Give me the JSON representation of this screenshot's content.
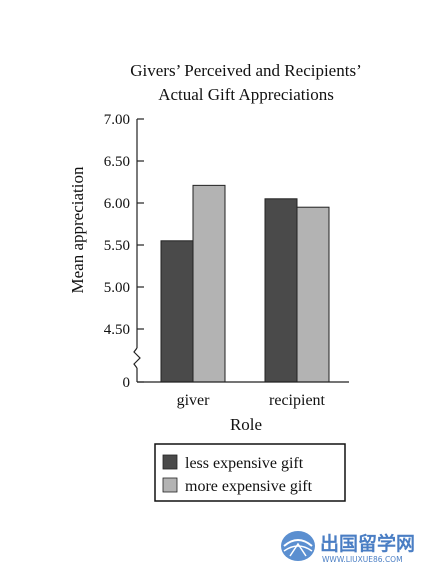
{
  "chart_data": {
    "type": "bar",
    "title": [
      "Givers’ Perceived and Recipients’",
      "Actual Gift Appreciations"
    ],
    "xlabel": "Role",
    "ylabel": "Mean appreciation",
    "categories": [
      "giver",
      "recipient"
    ],
    "series": [
      {
        "name": "less expensive gift",
        "values": [
          5.55,
          6.05
        ],
        "color": "#4a4a4a"
      },
      {
        "name": "more expensive gift",
        "values": [
          6.21,
          5.95
        ],
        "color": "#b3b3b3"
      }
    ],
    "yticks": [
      "7.00",
      "6.50",
      "6.00",
      "5.50",
      "5.00",
      "4.50",
      "0"
    ],
    "ylim": [
      4.5,
      7.0
    ],
    "axis_break": true,
    "legend_position": "bottom"
  },
  "watermark": {
    "text": "出国留学网",
    "subtext": "WWW.LIUXUE86.COM",
    "icon": "globe-logo-icon"
  }
}
